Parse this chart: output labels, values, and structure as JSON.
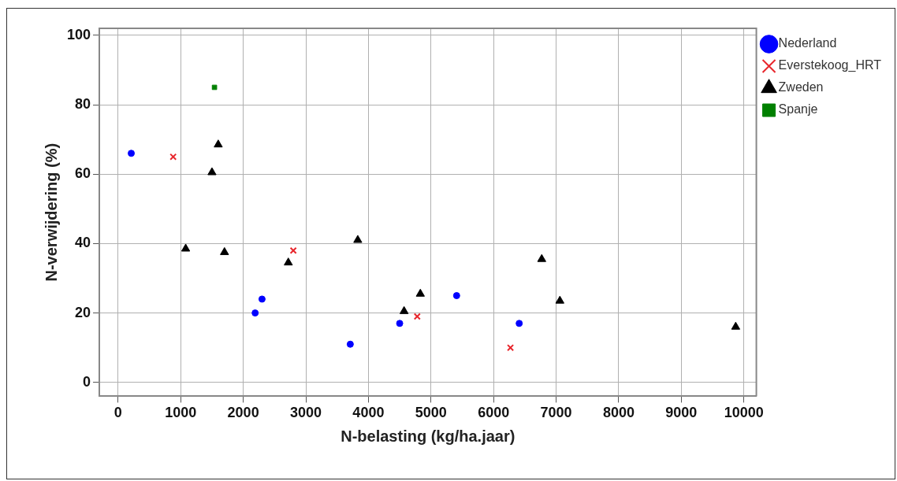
{
  "chart_data": {
    "type": "scatter",
    "xlabel": "N-belasting (kg/ha.jaar)",
    "ylabel": "N-verwijdering (%)",
    "xlim": [
      -300,
      10200
    ],
    "xticks": [
      0,
      1000,
      2000,
      3000,
      4000,
      5000,
      6000,
      7000,
      8000,
      9000,
      10000
    ],
    "ylim": [
      -4,
      102
    ],
    "yticks": [
      0,
      20,
      40,
      60,
      80,
      100
    ],
    "grid": true,
    "legend": "right",
    "series": [
      {
        "name": "Nederland",
        "color": "#0000ff",
        "marker": "circle",
        "x": [
          210,
          2190,
          2300,
          3710,
          4500,
          5410,
          6410
        ],
        "values": [
          66,
          20,
          24,
          11,
          17,
          25,
          17
        ]
      },
      {
        "name": "Everstekoog_HRT",
        "color": "#e8262c",
        "marker": "cross",
        "x": [
          880,
          2800,
          4780,
          6270
        ],
        "values": [
          65,
          38,
          19,
          10
        ]
      },
      {
        "name": "Zweden",
        "color": "#000000",
        "marker": "triangle",
        "x": [
          1600,
          1500,
          1080,
          1700,
          2720,
          3830,
          4570,
          4830,
          6770,
          7060,
          9870
        ],
        "values": [
          68.5,
          60.5,
          38.5,
          37.5,
          34.5,
          41,
          20.5,
          25.5,
          35.5,
          23.5,
          16
        ]
      },
      {
        "name": "Spanje",
        "color": "#008000",
        "marker": "square",
        "x": [
          1540
        ],
        "values": [
          85
        ]
      }
    ]
  }
}
